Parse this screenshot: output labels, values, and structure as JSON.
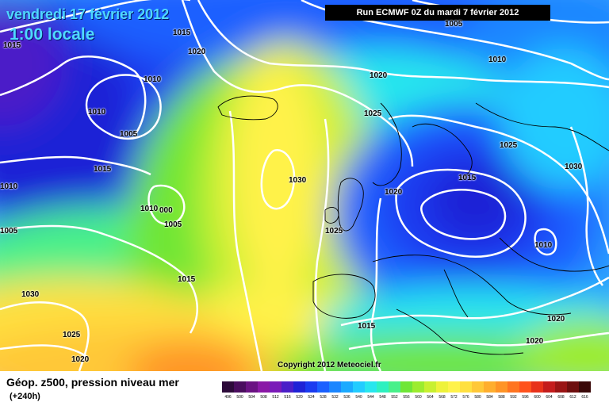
{
  "map": {
    "title_date": "vendredi 17 février 2012",
    "title_time": "1:00 locale",
    "run_label": "Run ECMWF 0Z du mardi 7 février 2012",
    "copyright": "Copyright 2012 Meteociel.fr",
    "isobar_labels": [
      "1015",
      "1015",
      "1020",
      "1010",
      "1010",
      "1005",
      "1015",
      "1010",
      "1010",
      "000",
      "1005",
      "1005",
      "1030",
      "1015",
      "1025",
      "1020",
      "1025",
      "1030",
      "1020",
      "1025",
      "1015",
      "1010",
      "1015",
      "1020",
      "1005",
      "1010",
      "1025",
      "1030",
      "1020",
      "1020"
    ],
    "colors": {
      "low_core": "#1a1aa0",
      "mid_blue": "#0a58ff",
      "cyan": "#28e6e6",
      "green": "#6fe636",
      "yellow": "#fff24a",
      "orange": "#ffb62a",
      "isobar": "#ffffff"
    }
  },
  "legend": {
    "title": "Géop. z500, pression niveau mer",
    "subtitle": "(+240h)",
    "ticks": [
      "496",
      "500",
      "504",
      "508",
      "512",
      "516",
      "520",
      "524",
      "528",
      "532",
      "536",
      "540",
      "544",
      "548",
      "552",
      "556",
      "560",
      "564",
      "568",
      "572",
      "576",
      "580",
      "584",
      "588",
      "592",
      "596",
      "600",
      "604",
      "608",
      "612",
      "616"
    ],
    "colors": [
      "#2d0a3a",
      "#4a0d5e",
      "#6a1282",
      "#8a18a6",
      "#7a1ab8",
      "#4b1fc8",
      "#1f22d6",
      "#1a3bf0",
      "#1a60ff",
      "#1a86ff",
      "#1aaaff",
      "#22ccff",
      "#28e6ee",
      "#2ef0c0",
      "#48f08a",
      "#6fe636",
      "#9cec2e",
      "#c8f030",
      "#eef23a",
      "#fff24a",
      "#ffe040",
      "#ffc838",
      "#ffae2e",
      "#ff9426",
      "#ff7420",
      "#ff521c",
      "#e8321a",
      "#c41c1c",
      "#9a1414",
      "#6e0e0e",
      "#3a0808"
    ]
  }
}
